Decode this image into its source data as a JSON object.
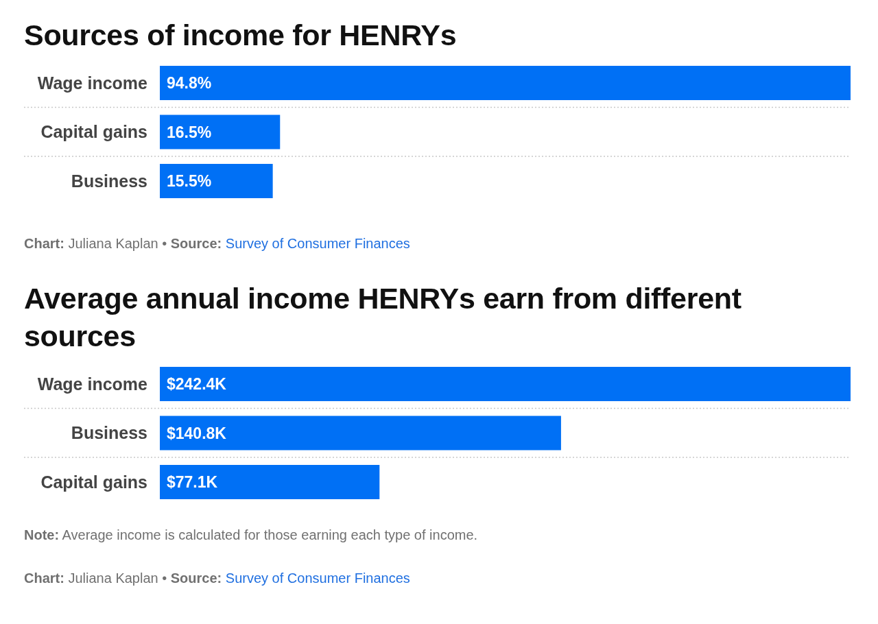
{
  "chart_data": [
    {
      "type": "bar",
      "orientation": "horizontal",
      "title": "Sources of income for HENRYs",
      "categories": [
        "Wage income",
        "Capital gains",
        "Business"
      ],
      "values": [
        94.8,
        16.5,
        15.5
      ],
      "value_labels": [
        "94.8%",
        "16.5%",
        "15.5%"
      ],
      "color": "#0070f5",
      "grid": "y",
      "tick_labels": "y",
      "annotations": [
        "Chart: Juliana Kaplan • Source: Survey of Consumer Finances"
      ]
    },
    {
      "type": "bar",
      "orientation": "horizontal",
      "title": "Average annual income HENRYs earn from different sources",
      "categories": [
        "Wage income",
        "Business",
        "Capital gains"
      ],
      "values": [
        242.4,
        140.8,
        77.1
      ],
      "value_labels": [
        "$242.4K",
        "$140.8K",
        "$77.1K"
      ],
      "color": "#0070f5",
      "grid": "y",
      "tick_labels": "y",
      "annotations": [
        "Note: Average income is calculated for those earning each type of income.",
        "Chart: Juliana Kaplan • Source: Survey of Consumer Finances"
      ]
    }
  ]
}
